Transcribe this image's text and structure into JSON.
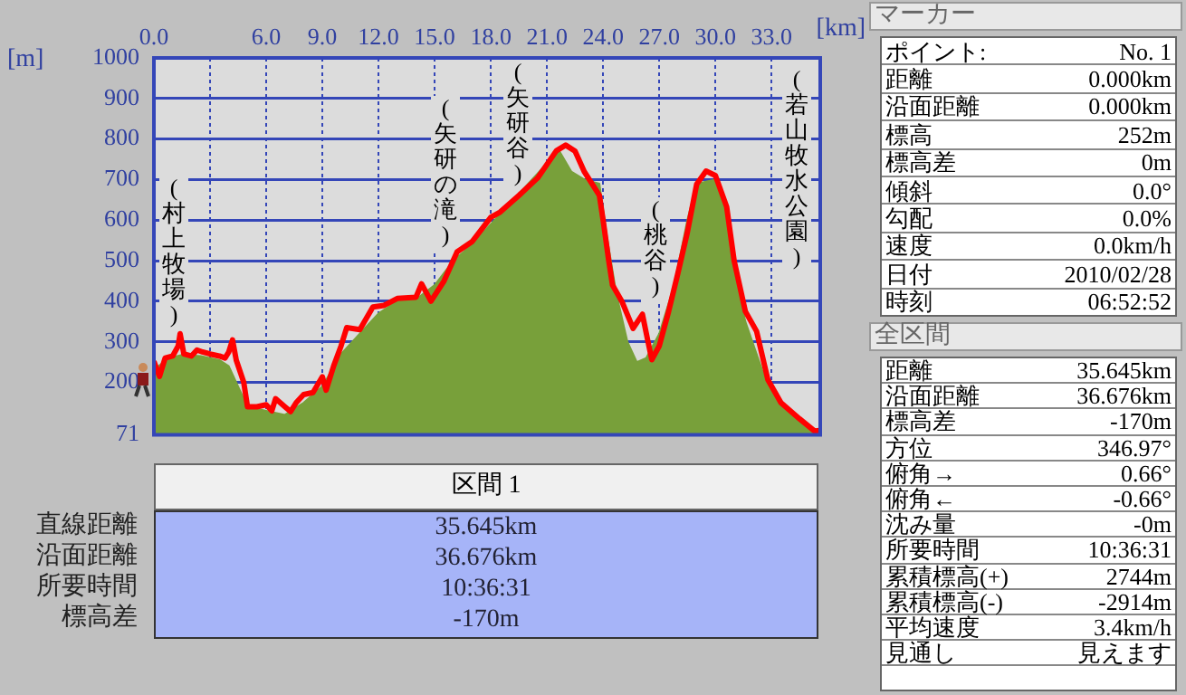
{
  "chart_data": {
    "type": "line",
    "xlabel": "[km]",
    "ylabel": "[m]",
    "xlim": [
      0,
      35.6
    ],
    "xticks": [
      {
        "value": 0,
        "label": "0.0"
      },
      {
        "value": 3,
        "label": null
      },
      {
        "value": 6,
        "label": "6.0"
      },
      {
        "value": 9,
        "label": "9.0"
      },
      {
        "value": 12,
        "label": "12.0"
      },
      {
        "value": 15,
        "label": "15.0"
      },
      {
        "value": 18,
        "label": "18.0"
      },
      {
        "value": 21,
        "label": "21.0"
      },
      {
        "value": 24,
        "label": "24.0"
      },
      {
        "value": 27,
        "label": "27.0"
      },
      {
        "value": 30,
        "label": "30.0"
      },
      {
        "value": 33,
        "label": "33.0"
      }
    ],
    "ylim": [
      71,
      1000
    ],
    "yticks": [
      71,
      200,
      300,
      400,
      500,
      600,
      700,
      800,
      900,
      1000
    ],
    "grid": true,
    "marker": "none",
    "line_style": "solid",
    "series": [
      {
        "type": "area",
        "color": "#78a03a",
        "x": [
          0,
          0.5,
          1,
          1.5,
          2.5,
          3.5,
          4,
          4.5,
          5,
          6,
          7,
          8,
          9,
          10,
          11,
          12,
          13,
          14,
          15,
          16,
          17,
          18,
          19,
          20,
          21,
          21.6,
          22.3,
          23,
          23.8,
          24.2,
          24.7,
          25.3,
          25.8,
          26.3,
          27,
          27.8,
          28.5,
          29,
          30,
          30.5,
          31,
          31.6,
          32.5,
          33.5,
          34.5,
          35.6
        ],
        "values": [
          230,
          250,
          262,
          268,
          265,
          255,
          240,
          190,
          140,
          130,
          120,
          150,
          190,
          270,
          320,
          370,
          400,
          405,
          440,
          500,
          540,
          590,
          640,
          690,
          740,
          775,
          720,
          700,
          690,
          560,
          420,
          300,
          250,
          260,
          320,
          440,
          600,
          690,
          700,
          640,
          480,
          350,
          230,
          150,
          105,
          78
        ]
      },
      {
        "type": "line",
        "color": "#ff0000",
        "x": [
          0,
          0.3,
          0.6,
          1,
          1.3,
          1.4,
          1.6,
          2,
          2.3,
          2.6,
          3,
          3.5,
          3.8,
          4,
          4.2,
          4.4,
          4.8,
          5,
          5.5,
          6,
          6.3,
          6.5,
          7,
          7.3,
          7.6,
          8,
          8.5,
          9,
          9.2,
          9.6,
          10,
          10.3,
          11,
          11.7,
          12.3,
          13,
          14,
          14.3,
          14.8,
          15.5,
          16.2,
          17,
          18,
          18.5,
          19.5,
          20.5,
          21.5,
          22,
          22.5,
          23,
          23.8,
          24,
          24.3,
          24.5,
          25,
          25.6,
          26.1,
          26.4,
          26.6,
          27,
          27.5,
          28,
          28.5,
          29,
          29.5,
          30,
          30.6,
          31,
          31.6,
          32.2,
          32.8,
          33.5,
          34.5,
          35.3,
          35.6
        ],
        "values": [
          252,
          215,
          260,
          265,
          290,
          320,
          270,
          265,
          280,
          275,
          270,
          265,
          260,
          275,
          305,
          255,
          200,
          140,
          140,
          145,
          130,
          160,
          140,
          128,
          150,
          170,
          175,
          214,
          181,
          240,
          290,
          335,
          330,
          386,
          390,
          407,
          410,
          443,
          400,
          450,
          522,
          547,
          607,
          620,
          661,
          704,
          771,
          785,
          770,
          719,
          661,
          600,
          500,
          440,
          400,
          333,
          368,
          300,
          256,
          290,
          375,
          470,
          570,
          689,
          721,
          710,
          633,
          500,
          375,
          326,
          207,
          150,
          110,
          80,
          82
        ]
      }
    ],
    "annotations": [
      "(村上牧場)",
      "(矢研の滝)",
      "(矢研谷)",
      "(桃谷)",
      "(若山牧水公園)",
      "区間 1",
      "直線距離",
      "35.645km",
      "沿面距離",
      "36.676km",
      "所要時間",
      "10:36:31",
      "標高差",
      "-170m",
      "マーカー",
      "ポイント:",
      "No. 1",
      "距離",
      "0.000km",
      "沿面距離",
      "0.000km",
      "標高",
      "252m",
      "標高差",
      "0m",
      "傾斜",
      "0.0°",
      "勾配",
      "0.0%",
      "速度",
      "0.0km/h",
      "日付",
      "2010/02/28",
      "時刻",
      "06:52:52",
      "全区間",
      "距離",
      "35.645km",
      "沿面距離",
      "36.676km",
      "標高差",
      "-170m",
      "方位",
      "346.97°",
      "俯角→",
      "0.66°",
      "俯角←",
      "-0.66°",
      "沈み量",
      "-0m",
      "所要時間",
      "10:36:31",
      "累積標高(+)",
      "2744m",
      "累積標高(-)",
      "-2914m",
      "平均速度",
      "3.4km/h",
      "見通し",
      "見えます"
    ]
  }
}
